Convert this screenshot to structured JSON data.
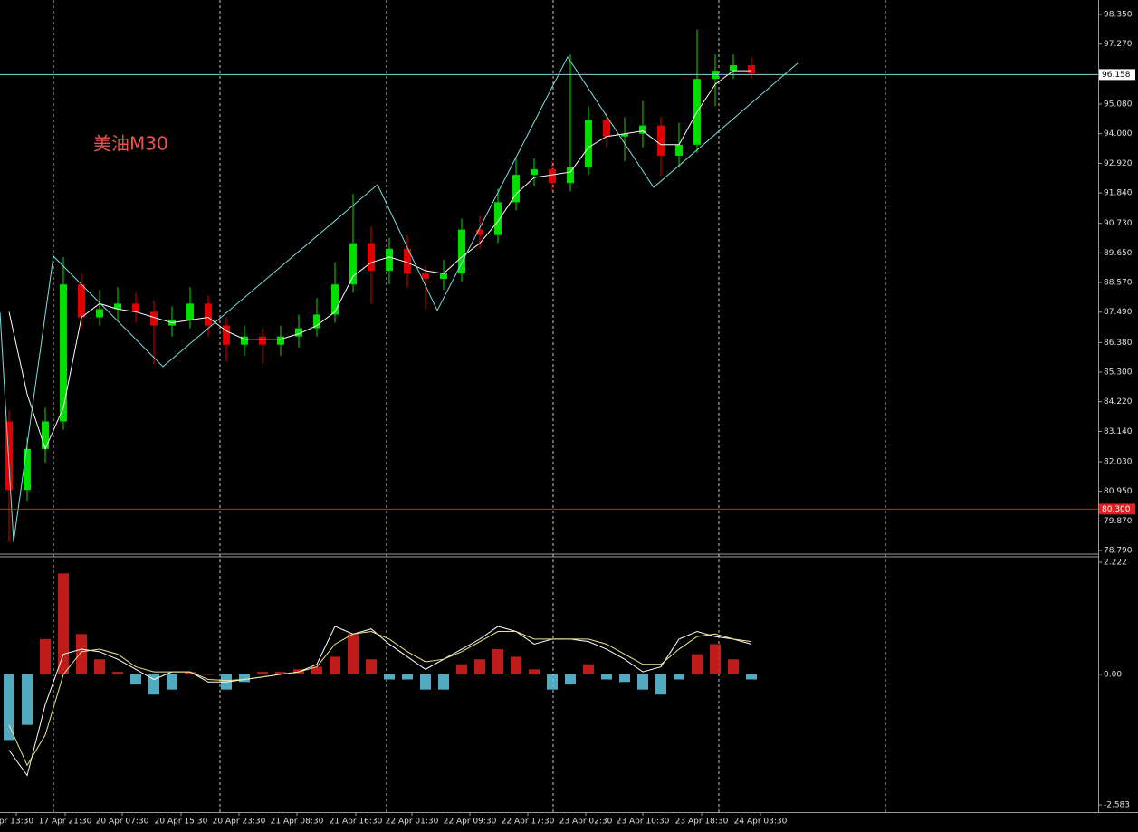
{
  "chart_data": [
    {
      "type": "candlestick",
      "title": "美油M30",
      "title_color": "#e8524f",
      "up_color": "#00e000",
      "down_color": "#e00000",
      "ohlc": {
        "open": [
          83.5,
          81,
          82.5,
          83.5,
          88.5,
          87.3,
          87.6,
          87.8,
          87.5,
          87.0,
          87.2,
          87.8,
          87.0,
          86.3,
          86.6,
          86.3,
          86.6,
          86.9,
          87.4,
          88.5,
          90.0,
          89.0,
          89.8,
          88.9,
          88.7,
          88.9,
          90.5,
          90.3,
          91.5,
          92.5,
          92.7,
          92.2,
          92.8,
          94.5,
          93.9,
          94.0,
          94.3,
          93.2,
          93.6,
          96.0,
          96.3,
          96.5
        ],
        "high": [
          83.9,
          82.9,
          84.0,
          89.5,
          88.9,
          88.3,
          88.4,
          88.2,
          87.9,
          87.7,
          88.4,
          88.1,
          87.3,
          87.0,
          86.9,
          87.0,
          87.4,
          88.0,
          89.3,
          91.8,
          90.6,
          90.2,
          90.3,
          89.2,
          89.4,
          90.9,
          91.0,
          92.0,
          93.1,
          93.1,
          93.0,
          96.9,
          95.0,
          94.8,
          94.6,
          95.2,
          94.6,
          94.4,
          97.8,
          96.9,
          96.9,
          96.8
        ],
        "low": [
          79.1,
          80.6,
          82.0,
          83.2,
          86.9,
          87.0,
          87.2,
          87.1,
          85.6,
          86.6,
          86.9,
          86.6,
          85.7,
          85.9,
          85.6,
          85.9,
          86.2,
          86.6,
          87.1,
          88.2,
          87.8,
          88.5,
          88.4,
          87.6,
          88.3,
          88.6,
          89.8,
          90.0,
          91.2,
          92.1,
          91.9,
          91.9,
          92.5,
          93.5,
          93.0,
          93.5,
          92.5,
          92.8,
          93.3,
          95.0,
          96.0,
          96.0
        ],
        "close": [
          81,
          82.5,
          83.5,
          88.5,
          87.3,
          87.6,
          87.8,
          87.5,
          87.0,
          87.2,
          87.8,
          87.0,
          86.3,
          86.6,
          86.3,
          86.6,
          86.9,
          87.4,
          88.5,
          90.0,
          89.0,
          89.8,
          88.9,
          88.7,
          88.9,
          90.5,
          90.3,
          91.5,
          92.5,
          92.7,
          92.2,
          92.8,
          94.5,
          93.9,
          94.0,
          94.3,
          93.2,
          93.6,
          96.0,
          96.3,
          96.5,
          96.2
        ]
      },
      "ma": {
        "color": "#ffffff",
        "values": [
          87.5,
          84.5,
          82.5,
          84,
          87.3,
          87.8,
          87.6,
          87.5,
          87.3,
          87.1,
          87.2,
          87.3,
          86.8,
          86.5,
          86.5,
          86.5,
          86.7,
          87.0,
          87.5,
          88.8,
          89.3,
          89.5,
          89.3,
          89.0,
          88.9,
          89.5,
          90.0,
          90.8,
          91.8,
          92.4,
          92.5,
          92.6,
          93.5,
          93.9,
          94.0,
          94.1,
          93.6,
          93.6,
          94.8,
          95.8,
          96.3,
          96.3
        ]
      },
      "zigzag": {
        "color": "#7fe0e0",
        "x": [
          -0.5,
          0.25,
          2.45,
          8.5,
          20.35,
          23.65,
          30.85,
          35.6,
          43.55
        ],
        "values": [
          87.48,
          79.1,
          89.53,
          85.5,
          92.14,
          87.55,
          96.8,
          92.04,
          96.57
        ]
      },
      "hlines": [
        {
          "value": 96.158,
          "label": "96.158",
          "color": "#7fd6d6"
        },
        {
          "value": 80.3,
          "label": "80.300",
          "color": "#e02020"
        }
      ],
      "xlim": [
        -0.5,
        60.15
      ],
      "xgrid": [
        2.45,
        11.65,
        20.85,
        30.05,
        39.2,
        48.4
      ],
      "ylim": [
        78.66,
        98.88
      ],
      "yticks": [
        {
          "value": 98.35,
          "label": "98.350"
        },
        {
          "value": 97.27,
          "label": "97.270"
        },
        {
          "value": 95.08,
          "label": "95.080"
        },
        {
          "value": 94.0,
          "label": "94.000"
        },
        {
          "value": 92.92,
          "label": "92.920"
        },
        {
          "value": 91.84,
          "label": "91.840"
        },
        {
          "value": 90.73,
          "label": "90.730"
        },
        {
          "value": 89.65,
          "label": "89.650"
        },
        {
          "value": 88.57,
          "label": "88.570"
        },
        {
          "value": 87.49,
          "label": "87.490"
        },
        {
          "value": 86.38,
          "label": "86.380"
        },
        {
          "value": 85.3,
          "label": "85.300"
        },
        {
          "value": 84.22,
          "label": "84.220"
        },
        {
          "value": 83.14,
          "label": "83.140"
        },
        {
          "value": 82.03,
          "label": "82.030"
        },
        {
          "value": 80.95,
          "label": "80.950"
        },
        {
          "value": 79.87,
          "label": "79.870"
        },
        {
          "value": 78.79,
          "label": "78.790"
        }
      ]
    },
    {
      "type": "macd",
      "histogram": {
        "up_color": "#e02020",
        "down_color": "#5fc8e0",
        "values": [
          -1.3,
          -1.0,
          0.7,
          2.0,
          0.8,
          0.3,
          0.05,
          -0.2,
          -0.4,
          -0.3,
          0.05,
          0.0,
          -0.3,
          -0.15,
          0.05,
          0.05,
          0.1,
          0.15,
          0.35,
          0.8,
          0.3,
          -0.1,
          -0.1,
          -0.3,
          -0.3,
          0.2,
          0.3,
          0.5,
          0.35,
          0.1,
          -0.3,
          -0.2,
          0.2,
          -0.1,
          -0.15,
          -0.3,
          -0.4,
          -0.1,
          0.4,
          0.6,
          0.3,
          -0.1
        ]
      },
      "lines": [
        {
          "color": "#ffffff",
          "values": [
            -1.5,
            -2.0,
            -0.6,
            0.4,
            0.5,
            0.45,
            0.3,
            0.1,
            -0.1,
            0.05,
            0.05,
            -0.15,
            -0.15,
            -0.1,
            -0.05,
            0.0,
            0.05,
            0.2,
            0.95,
            0.8,
            0.9,
            0.6,
            0.35,
            0.1,
            0.3,
            0.5,
            0.7,
            0.95,
            0.85,
            0.6,
            0.7,
            0.7,
            0.65,
            0.5,
            0.3,
            0.05,
            0.15,
            0.7,
            0.85,
            0.75,
            0.7,
            0.6
          ]
        },
        {
          "color": "#f0e68c",
          "values": [
            -1.0,
            -1.8,
            -1.2,
            0.0,
            0.45,
            0.5,
            0.4,
            0.15,
            0.05,
            0.05,
            0.05,
            -0.1,
            -0.12,
            -0.1,
            -0.05,
            0.0,
            0.05,
            0.15,
            0.6,
            0.8,
            0.85,
            0.7,
            0.45,
            0.25,
            0.3,
            0.45,
            0.65,
            0.85,
            0.85,
            0.7,
            0.7,
            0.7,
            0.7,
            0.6,
            0.4,
            0.2,
            0.2,
            0.5,
            0.75,
            0.8,
            0.7,
            0.65
          ]
        }
      ],
      "xlim": [
        -0.5,
        60.15
      ],
      "ylim": [
        -2.726,
        2.365
      ],
      "yticks": [
        {
          "value": 2.222,
          "label": "2.222"
        },
        {
          "value": 0,
          "label": "0.00"
        },
        {
          "value": -2.583,
          "label": "-2.583"
        }
      ],
      "xticks": [
        {
          "value": 0.4,
          "label": "pr 13:30"
        },
        {
          "value": 3.1,
          "label": "17 Apr 21:30"
        },
        {
          "value": 6.25,
          "label": "20 Apr 07:30"
        },
        {
          "value": 9.5,
          "label": "20 Apr 15:30"
        },
        {
          "value": 12.7,
          "label": "20 Apr 23:30"
        },
        {
          "value": 15.9,
          "label": "21 Apr 08:30"
        },
        {
          "value": 19.15,
          "label": "21 Apr 16:30"
        },
        {
          "value": 22.25,
          "label": "22 Apr 01:30"
        },
        {
          "value": 25.45,
          "label": "22 Apr 09:30"
        },
        {
          "value": 28.65,
          "label": "22 Apr 17:30"
        },
        {
          "value": 31.85,
          "label": "23 Apr 02:30"
        },
        {
          "value": 35.0,
          "label": "23 Apr 10:30"
        },
        {
          "value": 38.25,
          "label": "23 Apr 18:30"
        },
        {
          "value": 41.5,
          "label": "24 Apr 03:30"
        }
      ]
    }
  ]
}
